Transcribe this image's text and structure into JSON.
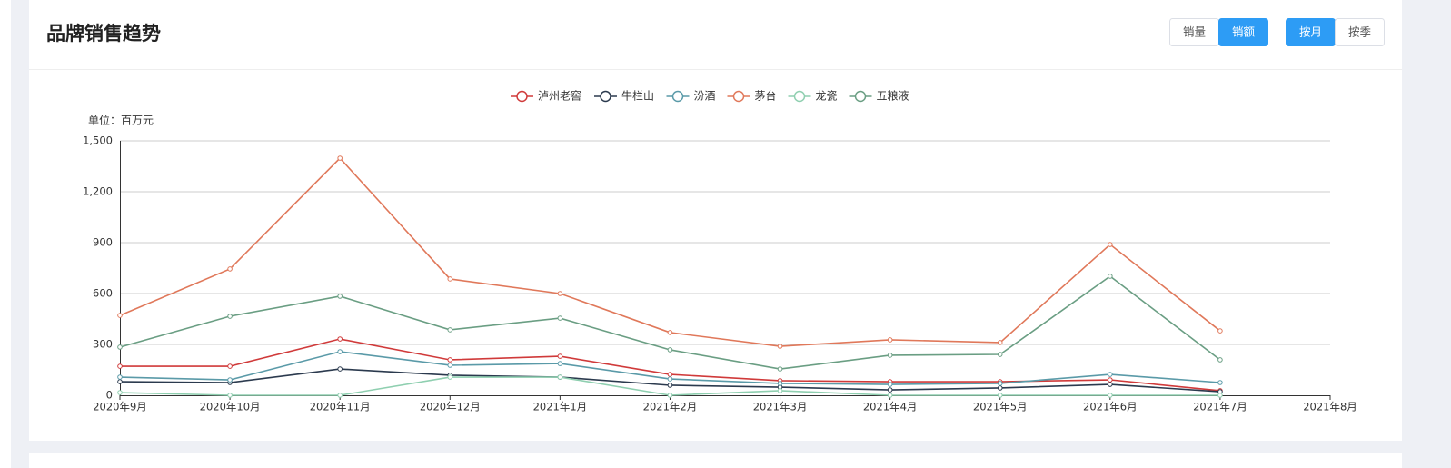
{
  "chart_data": {
    "type": "line",
    "title": "品牌销售趋势",
    "controls": [
      {
        "label": "销量",
        "active": false
      },
      {
        "label": "销额",
        "active": true
      },
      {
        "label": "按月",
        "active": true
      },
      {
        "label": "按季",
        "active": false
      }
    ],
    "y_label": "单位：百万元",
    "categories": [
      "2020年9月",
      "2020年10月",
      "2020年11月",
      "2020年12月",
      "2021年1月",
      "2021年2月",
      "2021年3月",
      "2021年4月",
      "2021年5月",
      "2021年6月",
      "2021年7月",
      "2021年8月"
    ],
    "series": [
      {
        "name": "泸州老窖",
        "color": "#d03a3a",
        "values": [
          171,
          171,
          332,
          209,
          230,
          123,
          86,
          80,
          80,
          91,
          27,
          null
        ]
      },
      {
        "name": "牛栏山",
        "color": "#2b3a4e",
        "values": [
          80,
          75,
          155,
          118,
          107,
          59,
          48,
          32,
          43,
          64,
          21,
          null
        ]
      },
      {
        "name": "汾酒",
        "color": "#5a9aa8",
        "values": [
          107,
          91,
          257,
          177,
          187,
          96,
          70,
          64,
          70,
          123,
          75,
          null
        ]
      },
      {
        "name": "茅台",
        "color": "#e0785a",
        "values": [
          471,
          745,
          1398,
          686,
          600,
          370,
          289,
          327,
          311,
          889,
          380,
          null
        ]
      },
      {
        "name": "龙瓷",
        "color": "#8fcfb0",
        "values": [
          16,
          0,
          0,
          107,
          107,
          0,
          27,
          0,
          0,
          0,
          0,
          null
        ]
      },
      {
        "name": "五粮液",
        "color": "#6a9e83",
        "values": [
          284,
          466,
          584,
          386,
          455,
          268,
          155,
          236,
          241,
          702,
          209,
          null
        ]
      }
    ],
    "ylim": [
      0,
      1500
    ],
    "yticks": [
      0,
      300,
      600,
      900,
      {
        "value": 1200,
        "label": "1,200"
      },
      {
        "value": 1500,
        "label": "1,500"
      }
    ],
    "grid": true,
    "legend": "top"
  }
}
